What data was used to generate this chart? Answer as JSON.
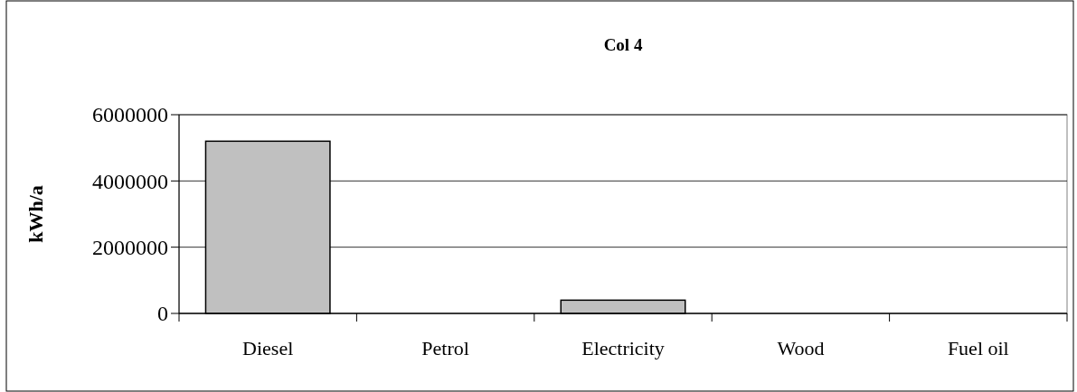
{
  "chart_data": {
    "type": "bar",
    "title": "Col 4",
    "ylabel": "kWh/a",
    "categories": [
      "Diesel",
      "Petrol",
      "Electricity",
      "Wood",
      "Fuel oil"
    ],
    "values": [
      5200000,
      0,
      400000,
      0,
      0
    ],
    "color": "#c0c0c0",
    "ylim": [
      0,
      6000000
    ],
    "yticks": [
      0,
      2000000,
      4000000,
      6000000
    ],
    "grid": "y"
  }
}
